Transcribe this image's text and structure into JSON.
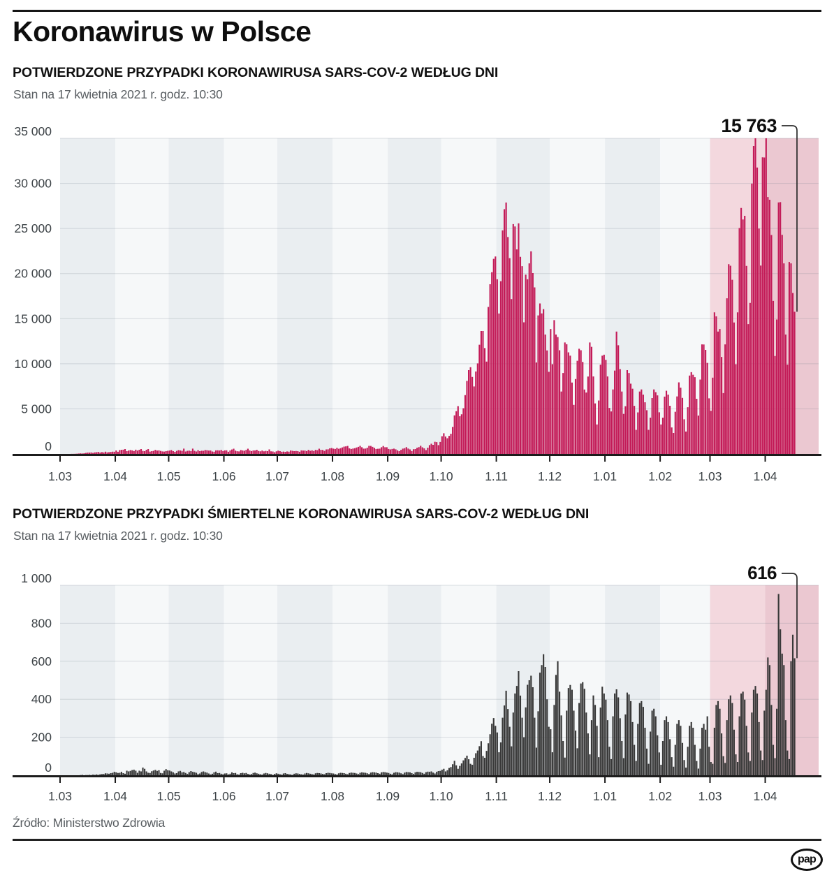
{
  "page": {
    "title": "Koronawirus w Polsce",
    "source": "Źródło: Ministerstwo Zdrowia",
    "logo_text": "pap"
  },
  "colors": {
    "cases_bar": "#c31b58",
    "deaths_bar": "#383838",
    "stripe_gray": "#eaeef1",
    "stripe_white": "#f6f8f9",
    "highlight_pink_light": "#f3d8de",
    "highlight_pink_dark": "#ebc8d1",
    "gridline": "rgba(120,132,146,0.25)",
    "axis": "#1c1c1c",
    "callout": "#2b2b2b",
    "tick_text": "#3d4347",
    "annotation_text": "#0e0e0e"
  },
  "chart_data": [
    {
      "type": "bar",
      "title": "POTWIERDZONE PRZYPADKI KORONAWIRUSA SARS-COV-2 WEDŁUG DNI",
      "subtitle": "Stan na 17 kwietnia 2021 r. godz. 10:30",
      "start_date": "2020-03-01",
      "end_date": "2021-04-17",
      "bar_color_key": "cases_bar",
      "x_tick_labels": [
        "1.03",
        "1.04",
        "1.05",
        "1.06",
        "1.07",
        "1.08",
        "1.09",
        "1.10",
        "1.11",
        "1.12",
        "1.01",
        "1.02",
        "1.03",
        "1.04"
      ],
      "y_ticks": [
        0,
        5000,
        10000,
        15000,
        20000,
        25000,
        30000,
        35000
      ],
      "y_tick_labels": [
        "0",
        "5 000",
        "10 000",
        "15 000",
        "20 000",
        "25 000",
        "30 000",
        "35 000"
      ],
      "ylim": [
        0,
        35000
      ],
      "highlight_from": "2021-03-01",
      "legend": "none",
      "grid": true,
      "annotation": {
        "label": "15 763",
        "value": 15763
      },
      "values_by_month": {
        "2020-03": [
          0,
          0,
          0,
          1,
          5,
          5,
          11,
          14,
          21,
          31,
          46,
          68,
          45,
          77,
          119,
          150,
          152,
          168,
          115,
          170,
          194,
          224,
          152,
          205,
          168,
          249,
          170,
          193,
          224,
          256,
          243
        ],
        "2020-04": [
          392,
          243,
          437,
          456,
          475,
          545,
          311,
          380,
          435,
          401,
          318,
          475,
          380,
          461,
          545,
          340,
          306,
          461,
          545,
          263,
          313,
          342,
          452,
          381,
          401,
          336,
          285,
          263,
          307,
          347
        ],
        "2020-05": [
          378,
          433,
          306,
          235,
          340,
          425,
          383,
          345,
          595,
          270,
          345,
          364,
          322,
          595,
          346,
          272,
          416,
          305,
          356,
          344,
          435,
          416,
          375,
          388,
          266,
          243,
          399,
          408,
          385,
          443,
          318
        ],
        "2020-06": [
          395,
          407,
          242,
          385,
          492,
          576,
          372,
          300,
          283,
          440,
          384,
          359,
          446,
          576,
          388,
          316,
          384,
          391,
          463,
          326,
          294,
          380,
          293,
          342,
          313,
          508,
          288,
          266,
          193,
          291
        ],
        "2020-07": [
          371,
          313,
          239,
          257,
          231,
          278,
          252,
          384,
          345,
          309,
          332,
          306,
          245,
          399,
          375,
          380,
          315,
          458,
          346,
          399,
          328,
          452,
          413,
          584,
          458,
          442,
          339,
          502,
          512,
          615,
          657
        ],
        "2020-08": [
          586,
          548,
          680,
          572,
          640,
          726,
          809,
          843,
          892,
          618,
          551,
          601,
          640,
          717,
          780,
          900,
          748,
          595,
          605,
          689,
          903,
          887,
          786,
          674,
          551,
          572,
          587,
          748,
          885,
          744,
          746
        ],
        "2020-09": [
          550,
          502,
          554,
          594,
          515,
          400,
          313,
          454,
          589,
          643,
          757,
          600,
          502,
          318,
          522,
          540,
          691,
          756,
          910,
          736,
          618,
          429,
          693,
          974,
          1136,
          1002,
          1350,
          1306,
          978,
          1326
        ],
        "2020-10": [
          1967,
          2292,
          1934,
          1741,
          2006,
          2236,
          3003,
          4280,
          4739,
          5300,
          4178,
          4394,
          5068,
          6526,
          8099,
          9291,
          9622,
          8536,
          7482,
          9143,
          10040,
          12107,
          13632,
          13628,
          11742,
          10241,
          16300,
          18820,
          20156,
          21629,
          21897
        ],
        "2020-11": [
          19364,
          15578,
          19152,
          24785,
          27143,
          27875,
          24051,
          21713,
          17171,
          25484,
          25221,
          22683,
          25571,
          21854,
          20816,
          14596,
          19883,
          19364,
          21130,
          22464,
          20051,
          18467,
          10139,
          15362,
          16687,
          15580,
          16060,
          13240,
          11483,
          9105
        ],
        "2020-12": [
          13855,
          9954,
          14838,
          13239,
          12957,
          11497,
          6919,
          8977,
          12361,
          12168,
          11267,
          10896,
          7914,
          5444,
          8306,
          10328,
          11664,
          11497,
          10200,
          7143,
          6811,
          8586,
          12361,
          11879,
          8594,
          5604,
          3271,
          5924,
          9902,
          10896,
          11008
        ],
        "2021-01": [
          10433,
          8594,
          5102,
          4716,
          7152,
          9246,
          13574,
          12054,
          9410,
          6919,
          4442,
          5291,
          9292,
          8977,
          7795,
          7235,
          5335,
          2674,
          4604,
          6925,
          7152,
          6586,
          5733,
          4852,
          2674,
          4029,
          6196,
          7156,
          6850,
          6495,
          4617
        ],
        "2021-02": [
          3271,
          4029,
          6361,
          7008,
          6586,
          5340,
          2947,
          2321,
          4677,
          6379,
          7938,
          7361,
          6211,
          3846,
          2491,
          5178,
          8694,
          9073,
          8777,
          8510,
          6117,
          4261,
          8245,
          12146,
          12142,
          11539,
          10099,
          6170
        ],
        "2021-03": [
          4786,
          8462,
          15698,
          15250,
          13571,
          13852,
          10753,
          6747,
          12146,
          17260,
          21045,
          20870,
          19312,
          14578,
          9954,
          15698,
          25052,
          27278,
          25998,
          26405,
          20849,
          14396,
          16741,
          29978,
          34151,
          35143,
          31757,
          24989,
          20890,
          32891,
          32874
        ],
        "2021-04": [
          35251,
          28487,
          28187,
          24280,
          16965,
          10858,
          14910,
          27887,
          27923,
          24293,
          21130,
          13245,
          9902,
          21283,
          21130,
          17847,
          15763
        ]
      }
    },
    {
      "type": "bar",
      "title": "POTWIERDZONE PRZYPADKI ŚMIERTELNE KORONAWIRUSA SARS-COV-2 WEDŁUG DNI",
      "subtitle": "Stan na 17 kwietnia 2021 r. godz. 10:30",
      "start_date": "2020-03-01",
      "end_date": "2021-04-17",
      "bar_color_key": "deaths_bar",
      "x_tick_labels": [
        "1.03",
        "1.04",
        "1.05",
        "1.06",
        "1.07",
        "1.08",
        "1.09",
        "1.10",
        "1.11",
        "1.12",
        "1.01",
        "1.02",
        "1.03",
        "1.04"
      ],
      "y_ticks": [
        0,
        200,
        400,
        600,
        800,
        1000
      ],
      "y_tick_labels": [
        "0",
        "200",
        "400",
        "600",
        "800",
        "1 000"
      ],
      "ylim": [
        0,
        1000
      ],
      "highlight_from": "2021-03-01",
      "legend": "none",
      "grid": true,
      "annotation": {
        "label": "616",
        "value": 616
      },
      "values_by_month": {
        "2020-03": [
          0,
          0,
          0,
          0,
          0,
          0,
          0,
          0,
          0,
          0,
          0,
          1,
          2,
          0,
          1,
          1,
          2,
          1,
          3,
          2,
          4,
          2,
          5,
          6,
          7,
          10,
          9,
          8,
          11,
          13,
          18
        ],
        "2020-04": [
          15,
          12,
          13,
          18,
          11,
          8,
          24,
          20,
          23,
          27,
          29,
          24,
          13,
          24,
          20,
          40,
          34,
          20,
          13,
          12,
          21,
          25,
          28,
          23,
          26,
          12,
          10,
          24,
          32,
          26
        ],
        "2020-05": [
          25,
          20,
          15,
          9,
          11,
          20,
          23,
          15,
          17,
          12,
          7,
          16,
          22,
          18,
          16,
          13,
          6,
          9,
          17,
          20,
          16,
          14,
          9,
          4,
          8,
          15,
          19,
          11,
          12,
          8,
          5
        ],
        "2020-06": [
          9,
          10,
          4,
          8,
          15,
          11,
          12,
          5,
          3,
          11,
          13,
          10,
          12,
          7,
          4,
          6,
          12,
          14,
          10,
          8,
          5,
          3,
          9,
          12,
          10,
          8,
          6,
          2,
          7,
          10
        ],
        "2020-07": [
          8,
          5,
          3,
          9,
          11,
          7,
          6,
          4,
          2,
          8,
          10,
          9,
          7,
          5,
          3,
          9,
          12,
          10,
          8,
          6,
          4,
          10,
          12,
          11,
          9,
          7,
          5,
          11,
          13,
          12,
          10
        ],
        "2020-08": [
          9,
          6,
          4,
          10,
          13,
          12,
          11,
          8,
          5,
          12,
          14,
          13,
          12,
          9,
          6,
          13,
          15,
          14,
          13,
          10,
          7,
          14,
          16,
          15,
          14,
          11,
          8,
          15,
          17,
          16,
          14
        ],
        "2020-09": [
          12,
          8,
          5,
          13,
          16,
          15,
          14,
          10,
          6,
          14,
          17,
          16,
          15,
          11,
          7,
          15,
          18,
          17,
          16,
          12,
          8,
          16,
          19,
          18,
          20,
          14,
          9,
          18,
          22,
          23
        ],
        "2020-10": [
          29,
          34,
          20,
          26,
          38,
          43,
          58,
          76,
          52,
          34,
          49,
          62,
          78,
          91,
          103,
          84,
          60,
          55,
          92,
          116,
          130,
          153,
          179,
          101,
          92,
          128,
          168,
          216,
          271,
          301,
          260
        ],
        "2020-11": [
          225,
          121,
          173,
          303,
          367,
          445,
          349,
          255,
          152,
          330,
          430,
          470,
          548,
          419,
          303,
          200,
          357,
          476,
          500,
          524,
          463,
          303,
          145,
          337,
          540,
          580,
          637,
          570,
          400,
          255
        ],
        "2020-12": [
          242,
          121,
          370,
          528,
          600,
          440,
          315,
          180,
          93,
          340,
          459,
          475,
          450,
          340,
          235,
          142,
          380,
          483,
          490,
          455,
          330,
          220,
          110,
          290,
          420,
          370,
          260,
          95,
          356,
          466,
          430
        ],
        "2021-01": [
          398,
          290,
          150,
          85,
          310,
          430,
          452,
          410,
          300,
          180,
          90,
          320,
          435,
          425,
          390,
          280,
          160,
          75,
          270,
          380,
          390,
          360,
          250,
          140,
          60,
          230,
          340,
          350,
          310,
          210,
          120
        ],
        "2021-02": [
          55,
          180,
          290,
          310,
          280,
          190,
          95,
          45,
          160,
          270,
          290,
          260,
          170,
          80,
          40,
          150,
          260,
          280,
          250,
          160,
          75,
          35,
          140,
          250,
          270,
          240,
          310,
          150
        ],
        "2021-03": [
          70,
          60,
          250,
          370,
          390,
          350,
          220,
          100,
          65,
          290,
          400,
          420,
          380,
          240,
          110,
          70,
          310,
          430,
          440,
          398,
          260,
          120,
          75,
          330,
          450,
          470,
          430,
          280,
          130,
          80,
          340
        ],
        "2021-04": [
          450,
          620,
          580,
          370,
          160,
          90,
          350,
          954,
          768,
          640,
          580,
          290,
          130,
          85,
          600,
          740,
          616
        ]
      }
    }
  ]
}
